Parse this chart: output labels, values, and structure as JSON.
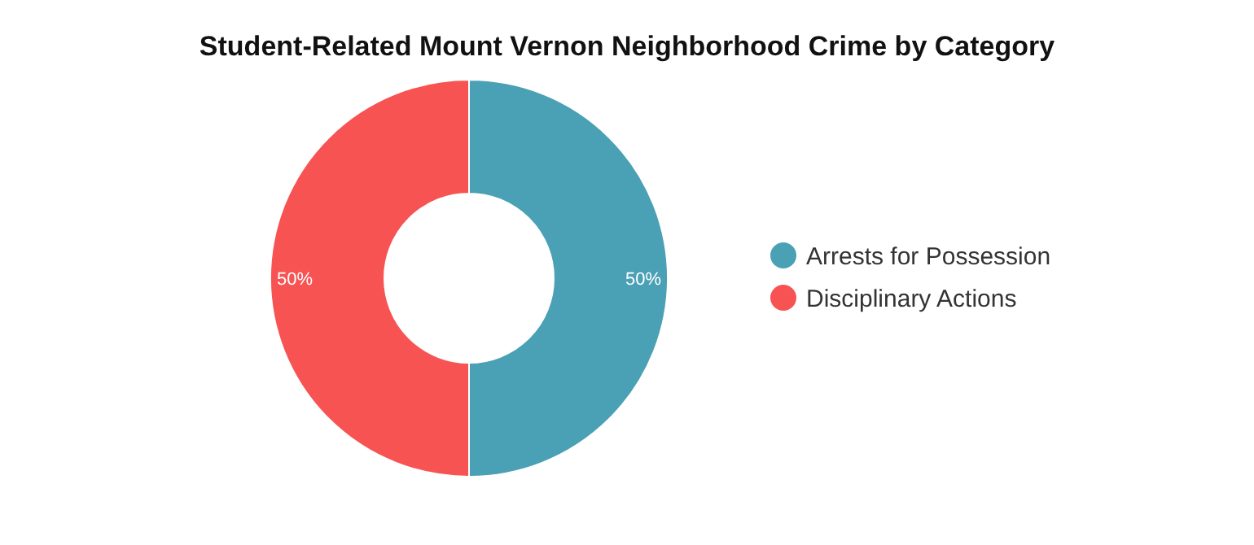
{
  "chart_data": {
    "type": "donut",
    "title": "Student-Related Mount Vernon Neighborhood Crime by Category",
    "categories": [
      "Arrests for Possession",
      "Disciplinary Actions"
    ],
    "values": [
      50,
      50
    ],
    "colors": [
      "#4aa0b4",
      "#f75353"
    ],
    "value_labels": [
      "50%",
      "50%"
    ],
    "legend": "right"
  }
}
